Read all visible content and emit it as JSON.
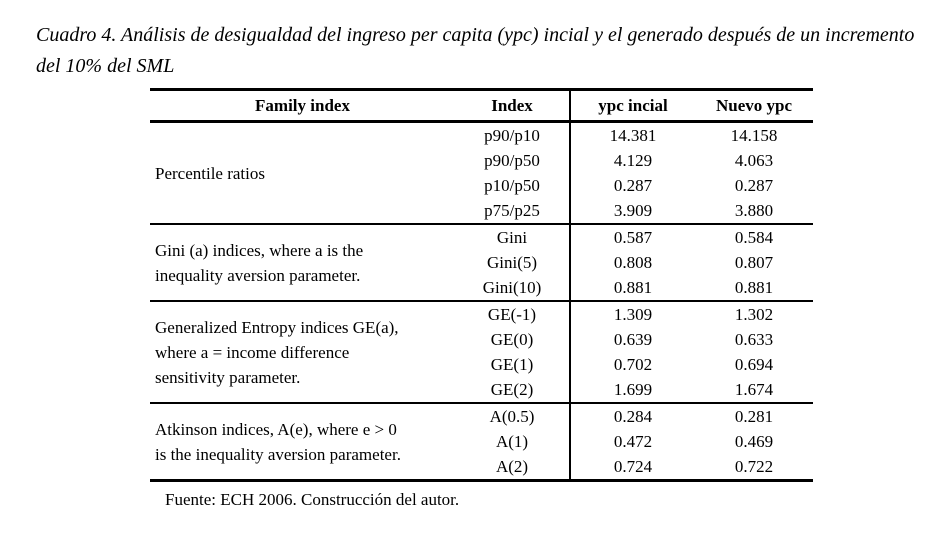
{
  "caption": "Cuadro 4. Análisis de desigualdad del ingreso per capita (ypc) incial y el generado después de un incremento del 10% del SML",
  "table": {
    "columns": {
      "family": "Family index",
      "index": "Index",
      "initial": "ypc incial",
      "new": "Nuevo ypc"
    },
    "groups": [
      {
        "label": "Percentile ratios",
        "rows": [
          {
            "index": "p90/p10",
            "initial": "14.381",
            "new": "14.158"
          },
          {
            "index": "p90/p50",
            "initial": "4.129",
            "new": "4.063"
          },
          {
            "index": "p10/p50",
            "initial": "0.287",
            "new": "0.287"
          },
          {
            "index": "p75/p25",
            "initial": "3.909",
            "new": "3.880"
          }
        ]
      },
      {
        "label": "Gini (a) indices, where a is the\ninequality aversion parameter.",
        "rows": [
          {
            "index": "Gini",
            "initial": "0.587",
            "new": "0.584"
          },
          {
            "index": "Gini(5)",
            "initial": "0.808",
            "new": "0.807"
          },
          {
            "index": "Gini(10)",
            "initial": "0.881",
            "new": "0.881"
          }
        ]
      },
      {
        "label": "Generalized Entropy indices GE(a),\nwhere a = income difference\nsensitivity parameter.",
        "rows": [
          {
            "index": "GE(-1)",
            "initial": "1.309",
            "new": "1.302"
          },
          {
            "index": "GE(0)",
            "initial": "0.639",
            "new": "0.633"
          },
          {
            "index": "GE(1)",
            "initial": "0.702",
            "new": "0.694"
          },
          {
            "index": "GE(2)",
            "initial": "1.699",
            "new": "1.674"
          }
        ]
      },
      {
        "label": "Atkinson indices, A(e), where e > 0\nis the inequality aversion parameter.",
        "rows": [
          {
            "index": "A(0.5)",
            "initial": "0.284",
            "new": "0.281"
          },
          {
            "index": "A(1)",
            "initial": "0.472",
            "new": "0.469"
          },
          {
            "index": "A(2)",
            "initial": "0.724",
            "new": "0.722"
          }
        ]
      }
    ]
  },
  "source_note": "Fuente: ECH 2006. Construcción del autor."
}
